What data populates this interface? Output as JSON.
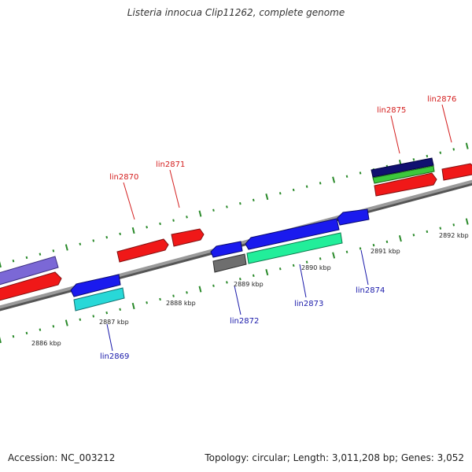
{
  "title": "Listeria innocua Clip11262, complete genome",
  "footer": {
    "accession": "Accession: NC_003212",
    "topology": "Topology: circular; Length: 3,011,208 bp; Genes: 3,052"
  },
  "colors": {
    "backbone": "#8c8c8c",
    "tick": "#2a8a2a",
    "forward_label": "#d42020",
    "reverse_label": "#1a1aaa"
  },
  "kbp_markers": [
    "2886 kbp",
    "2887 kbp",
    "2888 kbp",
    "2889 kbp",
    "2890 kbp",
    "2891 kbp",
    "2892 kbp"
  ],
  "genes": [
    {
      "name": "lin2869",
      "strand": "reverse"
    },
    {
      "name": "lin2870",
      "strand": "forward"
    },
    {
      "name": "lin2871",
      "strand": "forward"
    },
    {
      "name": "lin2872",
      "strand": "reverse"
    },
    {
      "name": "lin2873",
      "strand": "reverse"
    },
    {
      "name": "lin2874",
      "strand": "reverse"
    },
    {
      "name": "lin2875",
      "strand": "forward"
    },
    {
      "name": "lin2876",
      "strand": "forward"
    }
  ]
}
